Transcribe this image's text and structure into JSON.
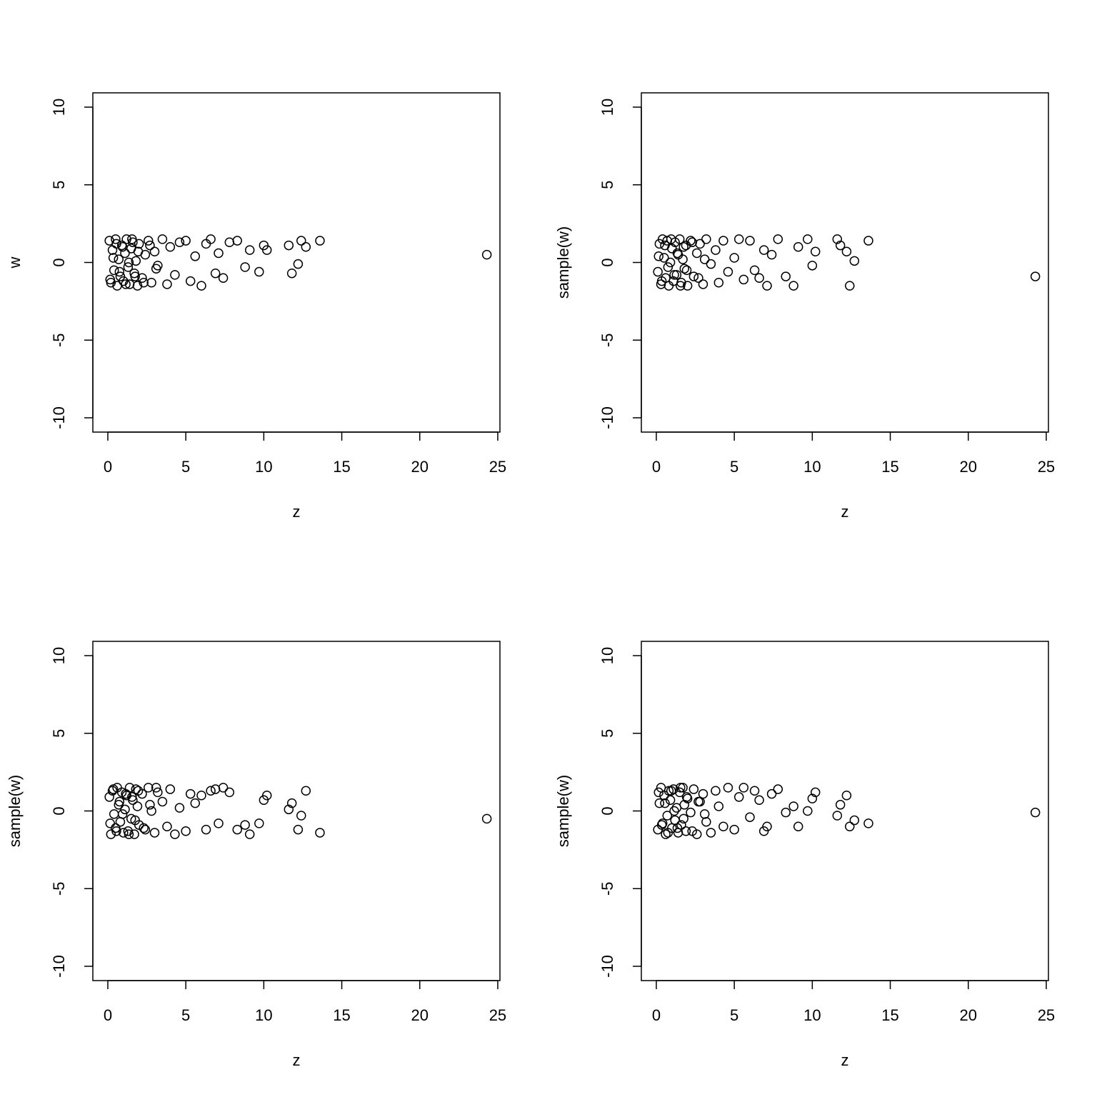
{
  "chart_data": [
    {
      "type": "scatter",
      "xlabel": "z",
      "ylabel": "w",
      "color": "#000000",
      "xlim": [
        -0.96,
        25.14
      ],
      "ylim": [
        -10.92,
        10.92
      ],
      "xticks": [
        0,
        5,
        10,
        15,
        20,
        25
      ],
      "yticks": [
        -10,
        -5,
        0,
        5,
        10
      ],
      "x": [
        0.1,
        0.2,
        0.3,
        0.4,
        0.5,
        0.6,
        0.7,
        0.8,
        0.9,
        1.0,
        1.1,
        1.2,
        1.3,
        1.4,
        1.5,
        1.6,
        1.7,
        1.8,
        1.9,
        2.0,
        2.2,
        2.4,
        2.6,
        2.8,
        3.0,
        3.2,
        3.5,
        3.8,
        4.0,
        4.3,
        4.6,
        5.0,
        5.3,
        5.6,
        6.0,
        6.3,
        6.6,
        6.9,
        7.1,
        7.4,
        7.8,
        8.3,
        8.8,
        9.1,
        9.7,
        10.0,
        10.2,
        11.6,
        11.8,
        12.2,
        12.4,
        12.7,
        13.6,
        24.3,
        0.15,
        0.35,
        0.55,
        0.75,
        0.95,
        1.15,
        1.35,
        1.55,
        1.75,
        1.95,
        2.3,
        2.7,
        3.1
      ],
      "y": [
        1.4,
        -1.3,
        0.8,
        -0.5,
        1.5,
        -1.5,
        0.2,
        -0.9,
        1.1,
        -1.2,
        0.6,
        1.5,
        -0.3,
        -1.4,
        0.9,
        1.3,
        -0.7,
        0.1,
        -1.5,
        1.2,
        -1.0,
        0.5,
        1.4,
        -1.3,
        0.7,
        -0.2,
        1.5,
        -1.4,
        1.0,
        -0.8,
        1.3,
        1.4,
        -1.2,
        0.4,
        -1.5,
        1.2,
        1.5,
        -0.7,
        0.6,
        -1.0,
        1.3,
        1.4,
        -0.3,
        0.8,
        -0.6,
        1.1,
        0.8,
        1.1,
        -0.7,
        -0.1,
        1.4,
        1.0,
        1.4,
        0.5,
        -1.1,
        0.3,
        1.2,
        -0.6,
        1.0,
        -1.4,
        0.0,
        1.5,
        -0.9,
        0.7,
        -1.3,
        1.1,
        -0.4
      ]
    },
    {
      "type": "scatter",
      "xlabel": "z",
      "ylabel": "sample(w)",
      "color": "#000000",
      "xlim": [
        -0.96,
        25.14
      ],
      "ylim": [
        -10.92,
        10.92
      ],
      "xticks": [
        0,
        5,
        10,
        15,
        20,
        25
      ],
      "yticks": [
        -10,
        -5,
        0,
        5,
        10
      ],
      "x": [
        0.1,
        0.2,
        0.3,
        0.4,
        0.5,
        0.6,
        0.7,
        0.8,
        0.9,
        1.0,
        1.1,
        1.2,
        1.3,
        1.4,
        1.5,
        1.6,
        1.7,
        1.8,
        1.9,
        2.0,
        2.2,
        2.4,
        2.6,
        2.8,
        3.0,
        3.2,
        3.5,
        3.8,
        4.0,
        4.3,
        4.6,
        5.0,
        5.3,
        5.6,
        6.0,
        6.3,
        6.6,
        6.9,
        7.1,
        7.4,
        7.8,
        8.3,
        8.8,
        9.1,
        9.7,
        10.0,
        10.2,
        11.6,
        11.8,
        12.2,
        12.4,
        12.7,
        13.6,
        24.3,
        0.15,
        0.35,
        0.55,
        0.75,
        0.95,
        1.15,
        1.35,
        1.55,
        1.75,
        1.95,
        2.3,
        2.7,
        3.1
      ],
      "y": [
        -0.6,
        1.2,
        -1.4,
        1.5,
        0.3,
        -1.0,
        1.4,
        -1.5,
        0.0,
        0.9,
        -1.2,
        1.3,
        -0.8,
        0.5,
        1.5,
        -1.3,
        0.2,
        -0.4,
        1.1,
        -1.5,
        1.4,
        -0.9,
        0.6,
        1.2,
        -1.4,
        1.5,
        -0.1,
        0.8,
        -1.3,
        1.4,
        -0.6,
        0.3,
        1.5,
        -1.1,
        1.4,
        -0.5,
        -1.0,
        0.8,
        -1.5,
        0.5,
        1.5,
        -0.9,
        -1.5,
        1.0,
        1.5,
        -0.2,
        0.7,
        1.5,
        1.1,
        0.7,
        -1.5,
        0.1,
        1.4,
        -0.9,
        0.4,
        -1.2,
        1.1,
        -0.3,
        1.5,
        -0.8,
        0.6,
        -1.5,
        1.0,
        -0.5,
        1.3,
        -1.0,
        0.2
      ]
    },
    {
      "type": "scatter",
      "xlabel": "z",
      "ylabel": "sample(w)",
      "color": "#000000",
      "xlim": [
        -0.96,
        25.14
      ],
      "ylim": [
        -10.92,
        10.92
      ],
      "xticks": [
        0,
        5,
        10,
        15,
        20,
        25
      ],
      "yticks": [
        -10,
        -5,
        0,
        5,
        10
      ],
      "x": [
        0.1,
        0.2,
        0.3,
        0.4,
        0.5,
        0.6,
        0.7,
        0.8,
        0.9,
        1.0,
        1.1,
        1.2,
        1.3,
        1.4,
        1.5,
        1.6,
        1.7,
        1.8,
        1.9,
        2.0,
        2.2,
        2.4,
        2.6,
        2.8,
        3.0,
        3.2,
        3.5,
        3.8,
        4.0,
        4.3,
        4.6,
        5.0,
        5.3,
        5.6,
        6.0,
        6.3,
        6.6,
        6.9,
        7.1,
        7.4,
        7.8,
        8.3,
        8.8,
        9.1,
        9.7,
        10.0,
        10.2,
        11.6,
        11.8,
        12.2,
        12.4,
        12.7,
        13.6,
        24.3,
        0.15,
        0.35,
        0.55,
        0.75,
        0.95,
        1.15,
        1.35,
        1.55,
        1.75,
        1.95,
        2.3,
        2.7,
        3.1
      ],
      "y": [
        0.9,
        -1.5,
        1.3,
        -0.2,
        -1.1,
        1.5,
        0.4,
        -0.7,
        1.2,
        -1.4,
        0.1,
        1.0,
        -1.3,
        1.5,
        -0.5,
        0.7,
        -1.5,
        1.4,
        0.3,
        -0.9,
        1.1,
        -1.2,
        1.5,
        0.0,
        -1.4,
        1.2,
        0.6,
        -1.0,
        1.4,
        -1.5,
        0.2,
        -1.3,
        1.1,
        0.5,
        1.0,
        -1.2,
        1.3,
        1.4,
        -0.8,
        1.5,
        1.2,
        -1.2,
        -0.9,
        -1.5,
        -0.8,
        0.7,
        1.0,
        0.1,
        0.5,
        -1.2,
        -0.3,
        1.3,
        -1.4,
        -0.5,
        -0.8,
        1.4,
        -1.3,
        0.6,
        -0.2,
        1.1,
        -1.5,
        0.9,
        -0.6,
        1.3,
        -1.1,
        0.4,
        1.5
      ]
    },
    {
      "type": "scatter",
      "xlabel": "z",
      "ylabel": "sample(w)",
      "color": "#000000",
      "xlim": [
        -0.96,
        25.14
      ],
      "ylim": [
        -10.92,
        10.92
      ],
      "xticks": [
        0,
        5,
        10,
        15,
        20,
        25
      ],
      "yticks": [
        -10,
        -5,
        0,
        5,
        10
      ],
      "x": [
        0.1,
        0.2,
        0.3,
        0.4,
        0.5,
        0.6,
        0.7,
        0.8,
        0.9,
        1.0,
        1.1,
        1.2,
        1.3,
        1.4,
        1.5,
        1.6,
        1.7,
        1.8,
        1.9,
        2.0,
        2.2,
        2.4,
        2.6,
        2.8,
        3.0,
        3.2,
        3.5,
        3.8,
        4.0,
        4.3,
        4.6,
        5.0,
        5.3,
        5.6,
        6.0,
        6.3,
        6.6,
        6.9,
        7.1,
        7.4,
        7.8,
        8.3,
        8.8,
        9.1,
        9.7,
        10.0,
        10.2,
        11.6,
        11.8,
        12.2,
        12.4,
        12.7,
        13.6,
        24.3,
        0.15,
        0.35,
        0.55,
        0.75,
        0.95,
        1.15,
        1.35,
        1.55,
        1.75,
        1.95,
        2.3,
        2.7,
        3.1
      ],
      "y": [
        -1.2,
        0.5,
        1.5,
        -0.8,
        1.0,
        -1.5,
        -0.3,
        1.3,
        0.7,
        -1.1,
        1.4,
        -0.6,
        0.2,
        -1.4,
        1.2,
        -0.9,
        1.5,
        0.4,
        -1.3,
        0.8,
        -0.1,
        1.4,
        -1.5,
        0.6,
        1.1,
        -0.7,
        -1.4,
        1.3,
        0.3,
        -1.0,
        1.5,
        -1.2,
        0.9,
        1.5,
        -0.4,
        1.3,
        0.7,
        -1.3,
        -1.0,
        1.1,
        1.4,
        -0.1,
        0.3,
        -1.0,
        0.0,
        0.8,
        1.2,
        -0.3,
        0.4,
        1.0,
        -1.0,
        -0.6,
        -0.8,
        -0.1,
        1.2,
        -0.9,
        0.5,
        -1.4,
        1.3,
        0.0,
        -1.1,
        1.5,
        -0.5,
        0.9,
        -1.3,
        0.6,
        -0.2
      ]
    }
  ]
}
